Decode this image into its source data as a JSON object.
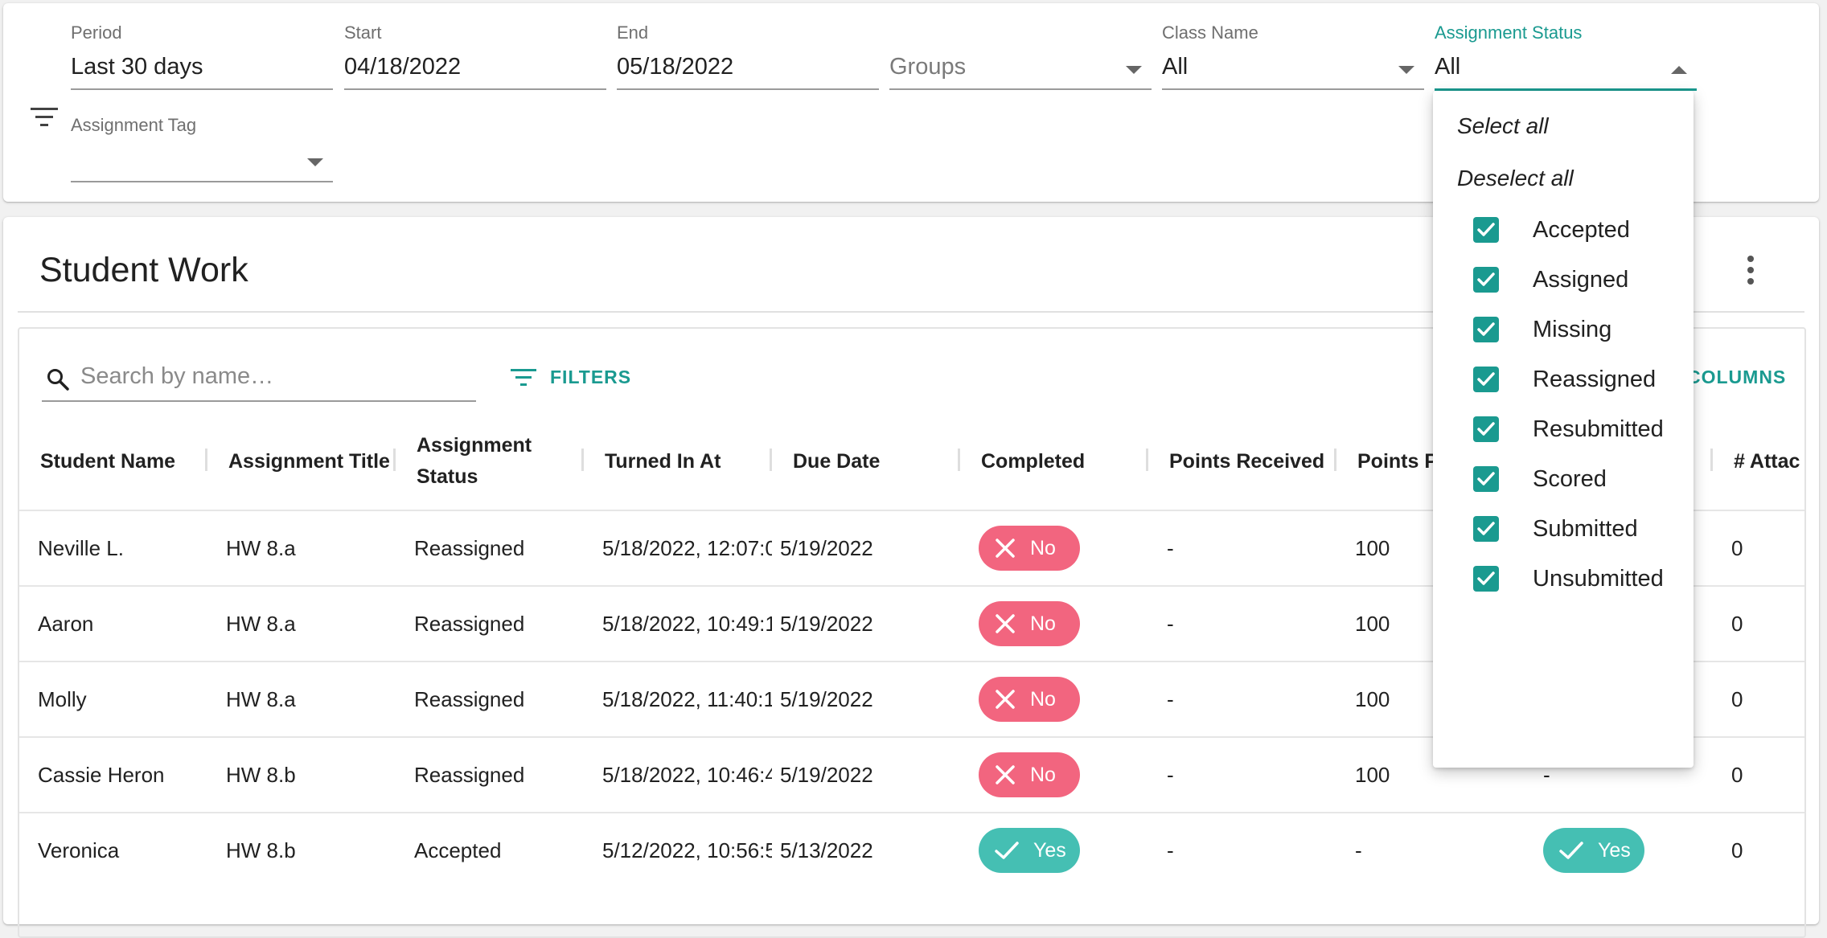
{
  "filters": {
    "period": {
      "label": "Period",
      "value": "Last 30 days"
    },
    "start": {
      "label": "Start",
      "value": "04/18/2022"
    },
    "end": {
      "label": "End",
      "value": "05/18/2022"
    },
    "groups": {
      "placeholder": "Groups"
    },
    "class_name": {
      "label": "Class Name",
      "value": "All"
    },
    "assignment_status": {
      "label": "Assignment Status",
      "value": "All"
    },
    "assignment_tag": {
      "label": "Assignment Tag",
      "value": ""
    }
  },
  "student_work": {
    "title": "Student Work",
    "search_placeholder": "Search by name…",
    "filters_label": "FILTERS",
    "columns_label": "COLUMNS",
    "headers": [
      "Student Name",
      "Assignment Title",
      "Assignment Status",
      "Turned In At",
      "Due Date",
      "Completed",
      "Points Received",
      "Points P",
      "",
      "# Attac"
    ],
    "rows": [
      {
        "name": "Neville L.",
        "title": "HW 8.a",
        "status": "Reassigned",
        "turned_in": "5/18/2022, 12:07:0",
        "due": "5/19/2022",
        "completed": "No",
        "received": "-",
        "possible": "100",
        "extra": "",
        "attachments": "0"
      },
      {
        "name": "Aaron",
        "title": "HW 8.a",
        "status": "Reassigned",
        "turned_in": "5/18/2022, 10:49:1",
        "due": "5/19/2022",
        "completed": "No",
        "received": "-",
        "possible": "100",
        "extra": "",
        "attachments": "0"
      },
      {
        "name": "Molly",
        "title": "HW 8.a",
        "status": "Reassigned",
        "turned_in": "5/18/2022, 11:40:1",
        "due": "5/19/2022",
        "completed": "No",
        "received": "-",
        "possible": "100",
        "extra": "",
        "attachments": "0"
      },
      {
        "name": "Cassie Heron",
        "title": "HW 8.b",
        "status": "Reassigned",
        "turned_in": "5/18/2022, 10:46:4",
        "due": "5/19/2022",
        "completed": "No",
        "received": "-",
        "possible": "100",
        "extra": "-",
        "attachments": "0"
      },
      {
        "name": "Veronica",
        "title": "HW 8.b",
        "status": "Accepted",
        "turned_in": "5/12/2022, 10:56:5",
        "due": "5/13/2022",
        "completed": "Yes",
        "received": "-",
        "possible": "-",
        "extra": "Yes",
        "attachments": "0"
      }
    ]
  },
  "status_menu": {
    "select_all": "Select all",
    "deselect_all": "Deselect all",
    "options": [
      {
        "label": "Accepted",
        "checked": true
      },
      {
        "label": "Assigned",
        "checked": true
      },
      {
        "label": "Missing",
        "checked": true
      },
      {
        "label": "Reassigned",
        "checked": true
      },
      {
        "label": "Resubmitted",
        "checked": true
      },
      {
        "label": "Scored",
        "checked": true
      },
      {
        "label": "Submitted",
        "checked": true
      },
      {
        "label": "Unsubmitted",
        "checked": true
      }
    ]
  },
  "colors": {
    "accent": "#1a9a90",
    "no_pill": "#f2657f",
    "yes_pill": "#45bfb3"
  },
  "icons": [
    "filter-icon",
    "search-icon",
    "filter-list-icon",
    "more-vert-icon",
    "close-icon",
    "check-icon",
    "checkbox-checked-icon",
    "dropdown-caret-icon"
  ]
}
